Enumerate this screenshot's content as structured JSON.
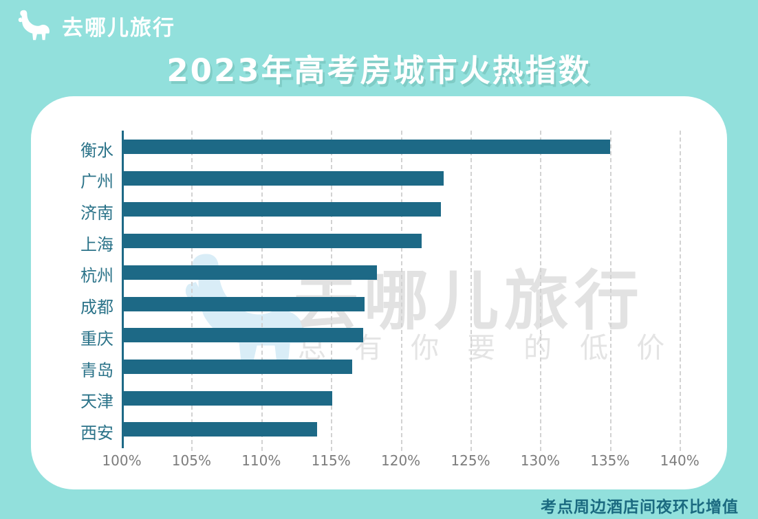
{
  "header": {
    "logo_text": "去哪儿旅行",
    "title": "2023年高考房城市火热指数"
  },
  "watermark": {
    "brand": "去哪儿旅行",
    "slogan": "总 有 你 要 的 低 价"
  },
  "footer": {
    "note": "考点周边酒店间夜环比增值"
  },
  "colors": {
    "background": "#92e0dc",
    "bar": "#1d6986",
    "axis": "#1d6986",
    "city_label": "#2b7389",
    "tick_label": "#7c7c7c",
    "gridline": "#d2d2d2",
    "title": "#ffffff",
    "title_shadow": "#7fccc6",
    "footer_text": "#1b6a80",
    "watermark_text": "#e2e2e2",
    "watermark_camel": "#d9edf7",
    "panel": "#ffffff"
  },
  "chart_data": {
    "type": "bar",
    "orientation": "horizontal",
    "title": "2023年高考房城市火热指数",
    "note": "考点周边酒店间夜环比增值",
    "categories": [
      "衡水",
      "广州",
      "济南",
      "上海",
      "杭州",
      "成都",
      "重庆",
      "青岛",
      "天津",
      "西安"
    ],
    "values": [
      134.9,
      123.0,
      122.8,
      121.4,
      118.2,
      117.3,
      117.2,
      116.4,
      115.0,
      113.9
    ],
    "unit": "%",
    "xlim": [
      100,
      140
    ],
    "xtick_step": 5,
    "xticks": [
      "100%",
      "105%",
      "110%",
      "115%",
      "120%",
      "125%",
      "130%",
      "135%",
      "140%"
    ],
    "grid": "vertical-dashed",
    "legend": "none"
  }
}
